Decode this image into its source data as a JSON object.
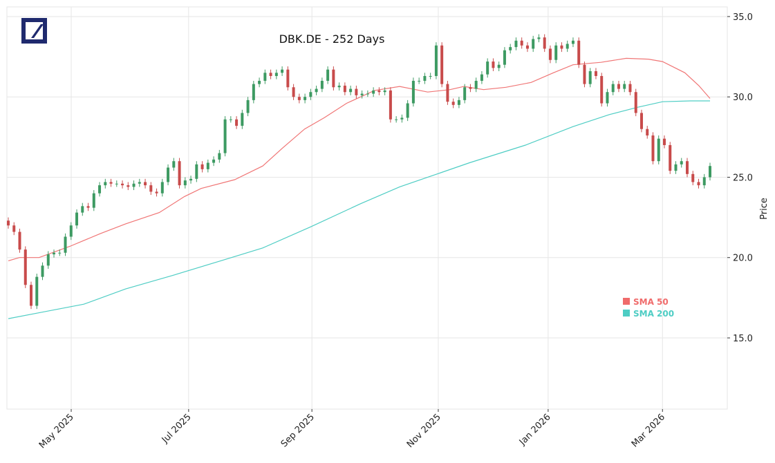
{
  "chart_data": {
    "type": "candlestick",
    "title": "DBK.DE - 252 Days",
    "xlabel": "",
    "ylabel": "Price",
    "ylim": [
      10.57,
      35.6
    ],
    "trading_days": 252,
    "y_ticks": [
      15.0,
      20.0,
      25.0,
      30.0,
      35.0
    ],
    "x_ticks": [
      {
        "label": "May 2025",
        "day_index": 22.5
      },
      {
        "label": "Jul 2025",
        "day_index": 64.5
      },
      {
        "label": "Sep 2025",
        "day_index": 108.6
      },
      {
        "label": "Nov 2025",
        "day_index": 153.8
      },
      {
        "label": "Jan 2026",
        "day_index": 193.1
      },
      {
        "label": "Mar 2026",
        "day_index": 234
      }
    ],
    "grid": true,
    "colors": {
      "up": "#3d9a62",
      "down": "#c84b4b",
      "sma50": "#f07575",
      "sma200": "#4ecdc4",
      "grid": "#e6e6e6"
    },
    "wick_pad": 0.2,
    "first_open": 22.3,
    "closes": [
      22.0,
      21.6,
      20.5,
      18.3,
      17.0,
      18.8,
      19.5,
      20.2,
      20.3,
      20.3,
      21.3,
      22.0,
      22.8,
      23.2,
      23.1,
      24.0,
      24.5,
      24.7,
      24.6,
      24.6,
      24.5,
      24.4,
      24.6,
      24.7,
      24.5,
      24.1,
      24.0,
      24.7,
      25.6,
      26.0,
      24.5,
      24.8,
      24.9,
      25.8,
      25.5,
      25.9,
      26.1,
      26.5,
      28.6,
      28.6,
      28.2,
      29.0,
      29.8,
      30.8,
      31.0,
      31.5,
      31.3,
      31.5,
      31.7,
      30.6,
      30.0,
      29.8,
      30.0,
      30.3,
      30.5,
      31.0,
      31.7,
      30.6,
      30.7,
      30.3,
      30.5,
      30.1,
      30.2,
      30.2,
      30.4,
      30.3,
      30.4,
      28.6,
      28.6,
      28.7,
      29.6,
      31.0,
      31.0,
      31.3,
      31.3,
      33.2,
      30.8,
      29.7,
      29.5,
      29.8,
      30.6,
      30.5,
      31.0,
      31.4,
      32.2,
      31.8,
      32.0,
      32.9,
      33.1,
      33.5,
      33.2,
      33.0,
      33.6,
      33.7,
      33.0,
      32.3,
      33.2,
      33.0,
      33.3,
      33.5,
      32.0,
      30.8,
      31.6,
      31.3,
      29.6,
      30.3,
      30.8,
      30.5,
      30.8,
      30.3,
      29.0,
      28.0,
      27.6,
      26.0,
      27.4,
      27.0,
      25.4,
      25.8,
      26.0,
      25.2,
      24.7,
      24.5,
      25.0,
      25.7
    ],
    "series": [
      {
        "name": "SMA 50",
        "points": [
          [
            0,
            19.8
          ],
          [
            4,
            20.0
          ],
          [
            11,
            20.0
          ],
          [
            22,
            20.7
          ],
          [
            33,
            21.5
          ],
          [
            42,
            22.1
          ],
          [
            54,
            22.8
          ],
          [
            63,
            23.8
          ],
          [
            69,
            24.3
          ],
          [
            81,
            24.85
          ],
          [
            91,
            25.7
          ],
          [
            98,
            26.8
          ],
          [
            106,
            28.0
          ],
          [
            113,
            28.7
          ],
          [
            121,
            29.6
          ],
          [
            131,
            30.4
          ],
          [
            140,
            30.65
          ],
          [
            150,
            30.3
          ],
          [
            158,
            30.45
          ],
          [
            163,
            30.65
          ],
          [
            170,
            30.45
          ],
          [
            178,
            30.6
          ],
          [
            187,
            30.9
          ],
          [
            195,
            31.5
          ],
          [
            202,
            32.0
          ],
          [
            212,
            32.15
          ],
          [
            221,
            32.4
          ],
          [
            229,
            32.35
          ],
          [
            234,
            32.2
          ],
          [
            242,
            31.5
          ],
          [
            247,
            30.7
          ],
          [
            251,
            29.9
          ]
        ]
      },
      {
        "name": "SMA 200",
        "points": [
          [
            0,
            16.2
          ],
          [
            12,
            16.6
          ],
          [
            27,
            17.1
          ],
          [
            42,
            18.05
          ],
          [
            59,
            18.9
          ],
          [
            76,
            19.8
          ],
          [
            91,
            20.6
          ],
          [
            108,
            21.9
          ],
          [
            126,
            23.35
          ],
          [
            140,
            24.4
          ],
          [
            155,
            25.3
          ],
          [
            165,
            25.9
          ],
          [
            185,
            27.0
          ],
          [
            202,
            28.15
          ],
          [
            215,
            28.9
          ],
          [
            225,
            29.35
          ],
          [
            234,
            29.7
          ],
          [
            244,
            29.75
          ],
          [
            251,
            29.75
          ]
        ]
      }
    ],
    "legend": [
      "SMA 50",
      "SMA 200"
    ],
    "legend_placement": "lower-right"
  },
  "logo": "Deutsche Bank"
}
